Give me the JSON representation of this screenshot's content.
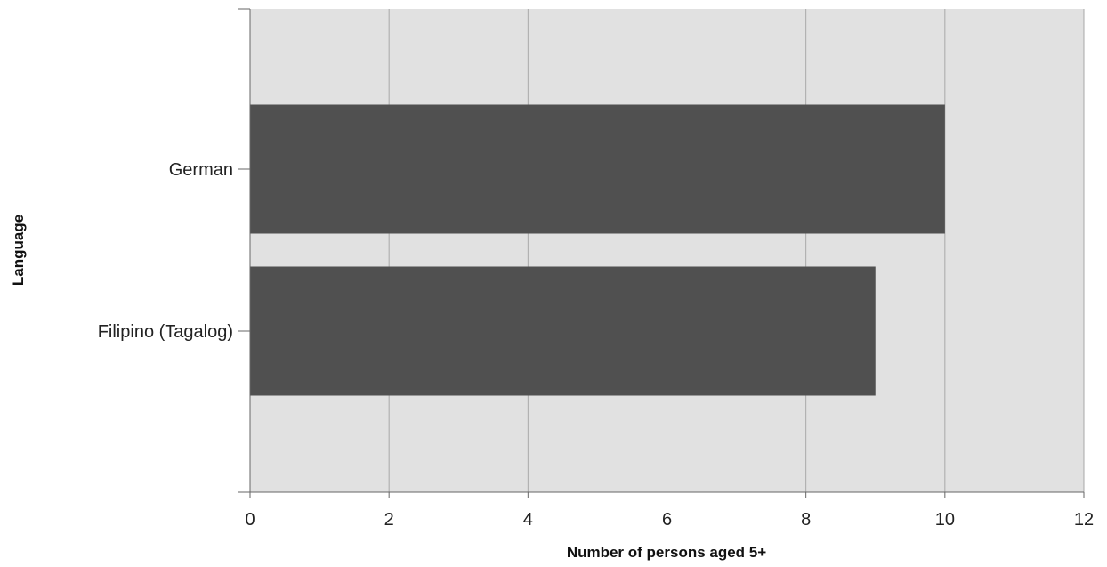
{
  "chart_data": {
    "type": "bar",
    "orientation": "horizontal",
    "categories": [
      "German",
      "Filipino (Tagalog)"
    ],
    "values": [
      10,
      9
    ],
    "title": "",
    "xlabel": "Number of persons aged 5+",
    "ylabel": "Language",
    "xlim": [
      0,
      12
    ],
    "xticks": [
      0,
      2,
      4,
      6,
      8,
      10,
      12
    ],
    "grid": true,
    "legend": "none",
    "colors": {
      "bar": "#505050",
      "plot_background": "#e1e1e1",
      "grid": "#a8a8a8"
    }
  }
}
